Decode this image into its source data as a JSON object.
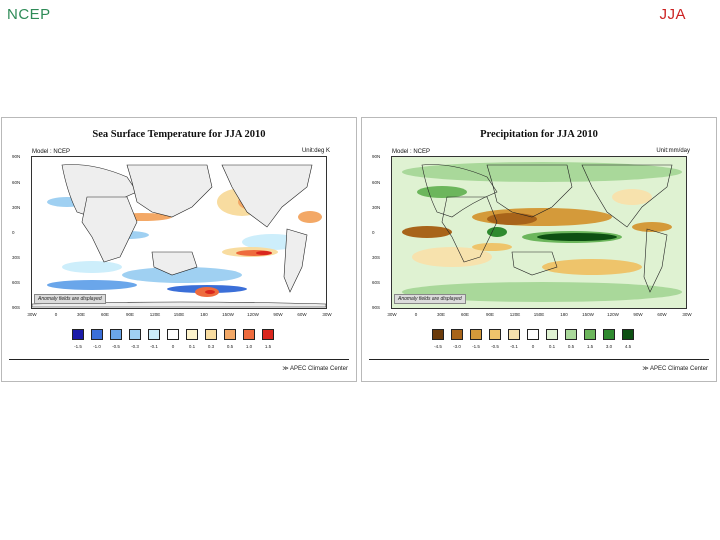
{
  "slide": {
    "left_label": "NCEP",
    "right_label": "JJA"
  },
  "panels": [
    {
      "title": "Sea Surface Temperature for JJA 2010",
      "model": "Model : NCEP",
      "unit": "Unit:deg K",
      "note": "Anomaly fields are displayed",
      "footer": "APEC Climate Center",
      "lat_labels": [
        "90N",
        "60N",
        "30N",
        "0",
        "30S",
        "60S",
        "90S"
      ],
      "lon_labels": [
        "30W",
        "0",
        "30E",
        "60E",
        "90E",
        "120E",
        "150E",
        "180",
        "150W",
        "120W",
        "90W",
        "60W",
        "30W"
      ],
      "legend_labels": [
        "-1.5",
        "-1.0",
        "-0.5",
        "-0.3",
        "-0.1",
        "0",
        "0.1",
        "0.3",
        "0.5",
        "1.0",
        "1.5"
      ],
      "legend_colors": [
        "#1a1aa8",
        "#3b6fd8",
        "#6aa6ea",
        "#9fd0f2",
        "#cdeefb",
        "#ffffff",
        "#fdf3cc",
        "#f8dca0",
        "#f3a866",
        "#ee6b3d",
        "#d9261d"
      ]
    },
    {
      "title": "Precipitation for JJA 2010",
      "model": "Model : NCEP",
      "unit": "Unit:mm/day",
      "note": "Anomaly fields are displayed",
      "footer": "APEC Climate Center",
      "lat_labels": [
        "90N",
        "60N",
        "30N",
        "0",
        "30S",
        "60S",
        "90S"
      ],
      "lon_labels": [
        "30W",
        "0",
        "30E",
        "60E",
        "90E",
        "120E",
        "150E",
        "180",
        "150W",
        "120W",
        "90W",
        "60W",
        "30W"
      ],
      "legend_labels": [
        "-4.5",
        "-3.0",
        "-1.5",
        "-0.5",
        "-0.1",
        "0",
        "0.1",
        "0.5",
        "1.5",
        "3.0",
        "4.5"
      ],
      "legend_colors": [
        "#6b3b0b",
        "#a8641a",
        "#d49a3a",
        "#eec46b",
        "#f7e2ad",
        "#ffffff",
        "#dff2d2",
        "#a9d89a",
        "#6cb65c",
        "#2f8a2f",
        "#0d4f12"
      ]
    }
  ]
}
